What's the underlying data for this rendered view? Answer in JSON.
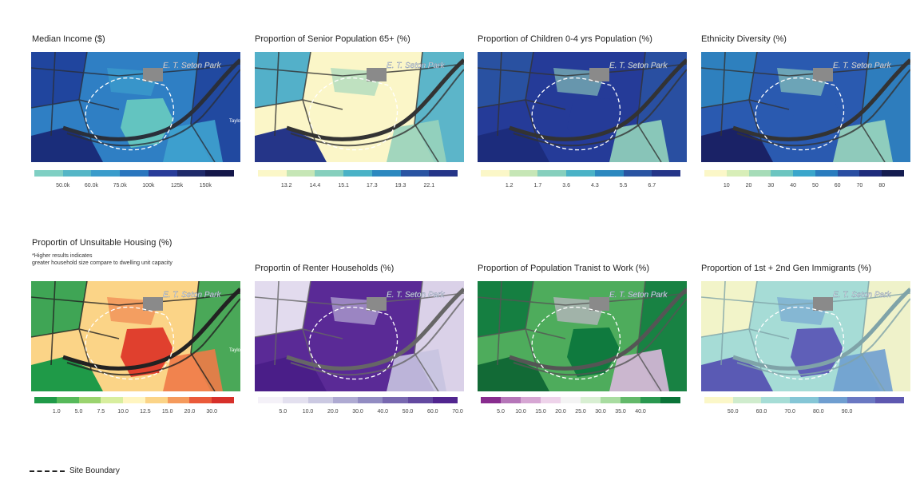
{
  "panels": [
    {
      "title": "Median Income ($)",
      "note": "",
      "legend": [
        "#7fcfc3",
        "#55b6c6",
        "#3a9ccb",
        "#2a76be",
        "#283c99",
        "#1f2a6a",
        "#14174a"
      ],
      "ticks": [
        "50.0k",
        "60.0k",
        "75.0k",
        "100k",
        "125k",
        "150k"
      ],
      "map": {
        "base": "#2f7fc4",
        "a": "#1f3f9a",
        "b": "#3fa3cf",
        "c": "#1a2d7a",
        "site": "#63c4c0",
        "road": "#2a2f3a",
        "park": true,
        "park_label": "E. T. Seton Park",
        "labels": [
          "Taylor"
        ]
      }
    },
    {
      "title": "Proportion of Senior Population  65+ (%)",
      "note": "",
      "legend": [
        "#fbf7c8",
        "#c6e6b6",
        "#86cfbd",
        "#4ab2c6",
        "#2c88bf",
        "#2a54a2",
        "#253588"
      ],
      "ticks": [
        "13.2",
        "14.4",
        "15.1",
        "17.3",
        "19.3",
        "22.1"
      ],
      "map": {
        "base": "#fbf6c8",
        "a": "#40a9c9",
        "b": "#98d3bb",
        "c": "#253588",
        "site": "#fbf6c8",
        "road": "#333333",
        "park": true,
        "park_label": "E. T. Seton Park",
        "labels": []
      }
    },
    {
      "title": "Proportion of Children 0-4 yrs Population (%)",
      "note": "",
      "legend": [
        "#fbf7c8",
        "#c6e6b6",
        "#86cfbd",
        "#4ab2c6",
        "#2c88bf",
        "#2a54a2",
        "#253588"
      ],
      "ticks": [
        "1.2",
        "1.7",
        "3.6",
        "4.3",
        "5.5",
        "6.7"
      ],
      "map": {
        "base": "#253b98",
        "a": "#2a54a2",
        "b": "#94d4bb",
        "c": "#1c2c7c",
        "site": "#253b98",
        "road": "#333333",
        "park": true,
        "park_label": "E. T. Seton Park",
        "labels": []
      }
    },
    {
      "title": "Ethnicity Diversity (%)",
      "note": "",
      "legend": [
        "#fbf7c8",
        "#d8eeb8",
        "#a6dcb8",
        "#6cc5c0",
        "#3aa6cb",
        "#2a7cbe",
        "#2a4ea2",
        "#1e2c7c",
        "#141c50"
      ],
      "ticks": [
        "10",
        "20",
        "30",
        "40",
        "50",
        "60",
        "70",
        "80"
      ],
      "map": {
        "base": "#2a5ab0",
        "a": "#2f84c0",
        "b": "#9ad6bd",
        "c": "#1a2266",
        "site": "#2a5ab0",
        "road": "#333333",
        "park": true,
        "park_label": "E. T. Seton Park",
        "labels": []
      }
    },
    {
      "title": "Proportin of Unsuitable Housing (%)",
      "note": "*Higher results indicates\ngreater household size compare to dwelling unit capacity",
      "legend": [
        "#1f9a48",
        "#56b95a",
        "#9ad36e",
        "#d8ee9e",
        "#fff5c0",
        "#fbd487",
        "#f59a5c",
        "#ea5a3a",
        "#d7302a"
      ],
      "ticks": [
        "1.0",
        "5.0",
        "7.5",
        "10.0",
        "12.5",
        "15.0",
        "20.0",
        "30.0"
      ],
      "map": {
        "base": "#fbd487",
        "a": "#2aa050",
        "b": "#ef7a48",
        "c": "#1f9a48",
        "site": "#e0402e",
        "road": "#222222",
        "park": true,
        "park_label": "E. T. Seton Park",
        "labels": [
          "Taylor"
        ]
      }
    },
    {
      "title": "Proportin of Renter Households (%)",
      "note": "",
      "legend": [
        "#f4f1f8",
        "#e3e0ef",
        "#cbc9e2",
        "#aeaad2",
        "#928cc2",
        "#7868b0",
        "#6349a0",
        "#51258f"
      ],
      "ticks": [
        "5.0",
        "10.0",
        "20.0",
        "30.0",
        "40.0",
        "50.0",
        "60.0",
        "70.0"
      ],
      "map": {
        "base": "#5a2a96",
        "a": "#f1eef7",
        "b": "#c7c3e0",
        "c": "#4a1e88",
        "site": "#5a2a96",
        "road": "#666666",
        "park": true,
        "park_label": "E. T. Seton Park",
        "labels": []
      }
    },
    {
      "title": "Proportion of Population Tranist to Work (%)",
      "note": "",
      "legend": [
        "#882c8e",
        "#b575b8",
        "#d6a6d3",
        "#eed3ea",
        "#f4f4f4",
        "#d8efd2",
        "#a8dca0",
        "#63b96a",
        "#2a9850",
        "#0a7438"
      ],
      "ticks": [
        "5.0",
        "10.0",
        "15.0",
        "20.0",
        "25.0",
        "30.0",
        "35.0",
        "40.0"
      ],
      "map": {
        "base": "#4eac5c",
        "a": "#0f7a3e",
        "b": "#d9b8dc",
        "c": "#126a36",
        "site": "#0f7a3e",
        "road": "#555555",
        "park": true,
        "park_label": "E. T. Seton Park",
        "labels": []
      }
    },
    {
      "title": "Proportion of 1st + 2nd Gen Immigrants (%)",
      "note": "",
      "legend": [
        "#fbf7c8",
        "#cfeccd",
        "#a6ddd6",
        "#85c6d6",
        "#6f9ed0",
        "#6a78c2",
        "#5e58b0"
      ],
      "ticks": [
        "50.0",
        "60.0",
        "70.0",
        "80.0",
        "90.0"
      ],
      "map": {
        "base": "#a6dcd6",
        "a": "#fbf6c8",
        "b": "#6f9ed0",
        "c": "#5a5ab4",
        "site": "#5f5fb8",
        "road": "#7fa3a8",
        "park": true,
        "park_label": "E. T. Seton Park",
        "labels": []
      }
    }
  ],
  "footer": {
    "label": "Site Boundary"
  }
}
